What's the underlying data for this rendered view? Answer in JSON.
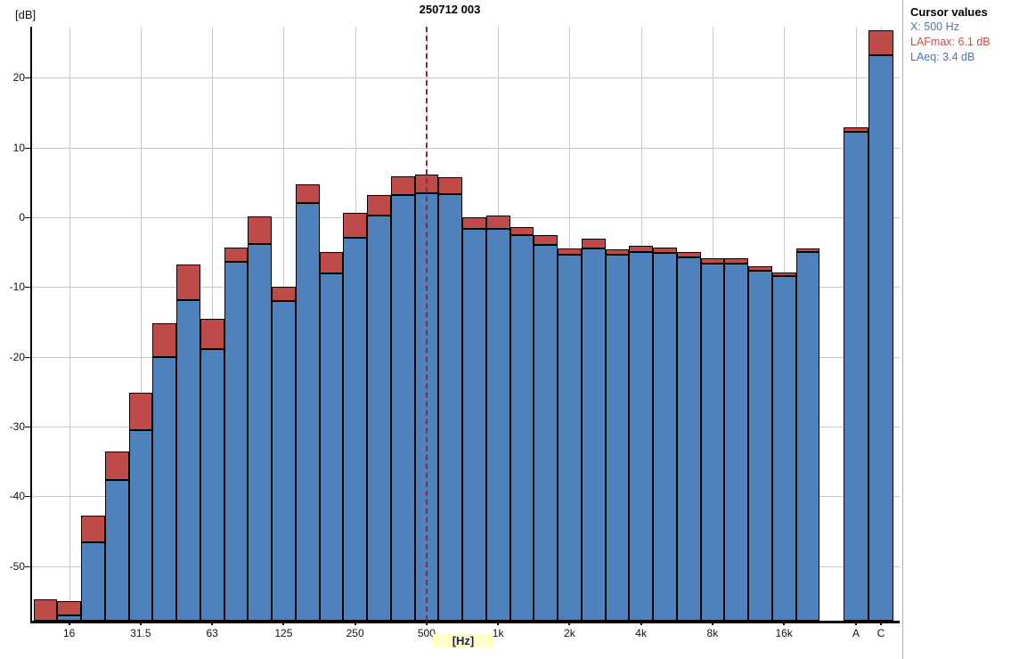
{
  "title": "250712 003",
  "y_axis": {
    "unit_label": "[dB]",
    "ticks": [
      20,
      10,
      0,
      -10,
      -20,
      -30,
      -40,
      -50
    ]
  },
  "x_axis": {
    "unit_label": "[Hz]"
  },
  "cursor_panel": {
    "heading": "Cursor values",
    "x_line": "X: 500 Hz",
    "max_line": "LAFmax: 6.1 dB",
    "eq_line": "LAeq: 3.4 dB"
  },
  "colors": {
    "laeq_fill": "#4f81bd",
    "lafmax_fill": "#be4b48",
    "bar_border": "#000000",
    "grid": "#c9c9c9",
    "axis": "#000000",
    "cursor_line": "#832c4a",
    "cursor_x_text": "#4677bc",
    "cursor_max_text": "#c0504d",
    "cursor_eq_text": "#4677bc",
    "hz_label_bg": "#ffffc8",
    "hz_label_text": "#1a1a66"
  },
  "chart_data": {
    "type": "bar",
    "subtype": "third-octave-spectrum, LAFmax caps overlaid on LAeq",
    "title": "250712 003",
    "xlabel": "[Hz]",
    "ylabel": "[dB]",
    "ylim": [
      -57.8,
      27.3
    ],
    "grid": true,
    "y_ticks": [
      20,
      10,
      0,
      -10,
      -20,
      -30,
      -40,
      -50
    ],
    "x_ticks_shown": [
      "16",
      "31.5",
      "63",
      "125",
      "250",
      "500",
      "1k",
      "2k",
      "4k",
      "8k",
      "16k",
      "A",
      "C"
    ],
    "categories": [
      "12.5",
      "16",
      "20",
      "25",
      "31.5",
      "40",
      "50",
      "63",
      "80",
      "100",
      "125",
      "160",
      "200",
      "250",
      "315",
      "400",
      "500",
      "630",
      "800",
      "1k",
      "1.25k",
      "1.6k",
      "2k",
      "2.5k",
      "3.15k",
      "4k",
      "5k",
      "6.3k",
      "8k",
      "10k",
      "12.5k",
      "16k",
      "20k"
    ],
    "series": [
      {
        "name": "LAFmax",
        "color": "#be4b48",
        "values": [
          -54.8,
          -55.0,
          -42.8,
          -33.5,
          -25.2,
          -15.2,
          -6.8,
          -14.6,
          -4.3,
          0.1,
          -10.0,
          4.7,
          -5.0,
          0.6,
          3.2,
          5.9,
          6.1,
          5.7,
          0.0,
          0.3,
          -1.4,
          -2.5,
          -4.5,
          -3.1,
          -4.6,
          -4.1,
          -4.3,
          -5.0,
          -5.9,
          -5.9,
          -7.0,
          -7.9,
          -4.5
        ]
      },
      {
        "name": "LAeq",
        "color": "#4f81bd",
        "values": [
          -57.8,
          -57.0,
          -46.6,
          -37.7,
          -30.5,
          -20.0,
          -11.9,
          -18.9,
          -6.4,
          -3.8,
          -12.0,
          2.0,
          -8.0,
          -2.9,
          0.3,
          3.2,
          3.4,
          3.3,
          -1.7,
          -1.7,
          -2.6,
          -4.0,
          -5.3,
          -4.5,
          -5.4,
          -5.0,
          -5.1,
          -5.8,
          -6.6,
          -6.7,
          -7.7,
          -8.4,
          -5.0
        ]
      }
    ],
    "broadband": [
      {
        "label": "A",
        "lafmax": 12.9,
        "laeq": 12.2
      },
      {
        "label": "C",
        "lafmax": 26.8,
        "laeq": 23.2
      }
    ],
    "cursor": {
      "band": "500",
      "lafmax_db": 6.1,
      "laeq_db": 3.4
    },
    "legend_position": "none"
  }
}
